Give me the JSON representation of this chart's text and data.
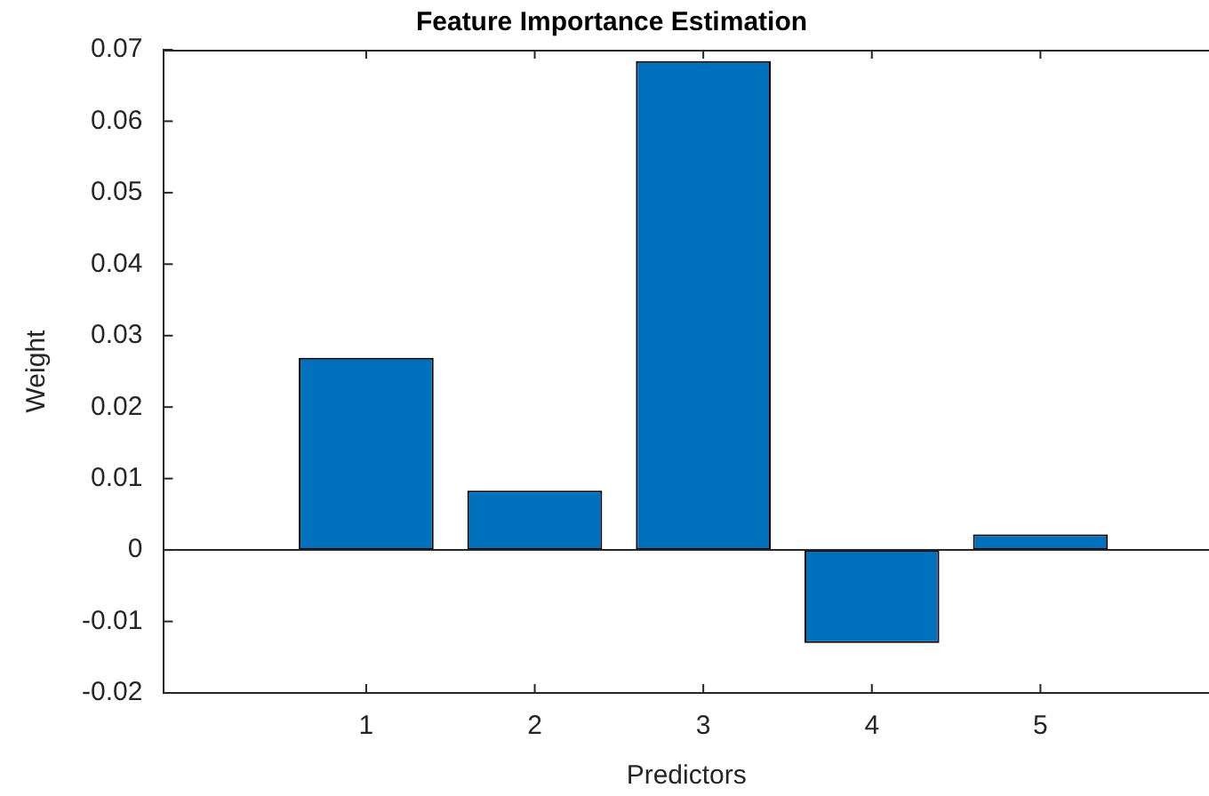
{
  "chart_data": {
    "type": "bar",
    "title": "Feature Importance Estimation",
    "xlabel": "Predictors",
    "ylabel": "Weight",
    "x": [
      1,
      2,
      3,
      4,
      5
    ],
    "values": [
      0.0269,
      0.0083,
      0.0684,
      -0.013,
      0.0022
    ],
    "color": "#0072bd",
    "xlim": [
      -0.2,
      6
    ],
    "xticks": [
      1,
      2,
      3,
      4,
      5
    ],
    "ylim": [
      -0.02,
      0.07
    ],
    "yticks": [
      -0.02,
      -0.01,
      0,
      0.01,
      0.02,
      0.03,
      0.04,
      0.05,
      0.06,
      0.07
    ],
    "ref_lines": [
      {
        "axis": "y",
        "value": 0,
        "color": "#262626"
      }
    ],
    "grid": false,
    "legend": false
  }
}
